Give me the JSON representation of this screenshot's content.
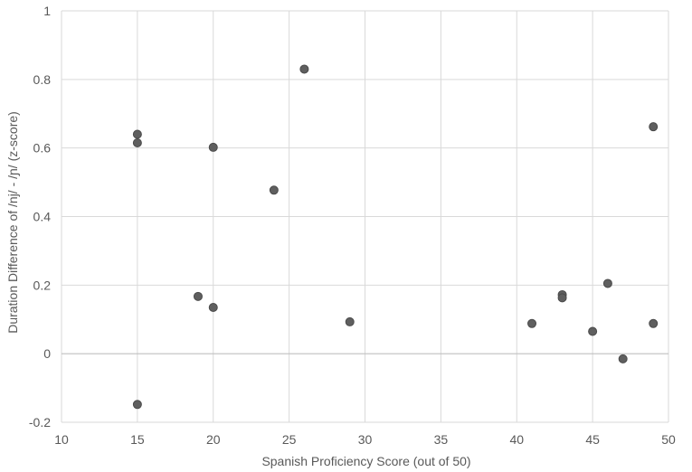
{
  "chart_data": {
    "type": "scatter",
    "title": "",
    "xlabel": "Spanish Proficiency  Score (out  of 50)",
    "ylabel": "Duration Difference of /nj/ - /ɲ/ (z-score)",
    "xlim": [
      10,
      50
    ],
    "ylim": [
      -0.2,
      1
    ],
    "xticks": [
      10,
      15,
      20,
      25,
      30,
      35,
      40,
      45,
      50
    ],
    "yticks": [
      -0.2,
      0,
      0.2,
      0.4,
      0.6,
      0.8,
      1
    ],
    "ytick_labels": [
      "-0.2",
      "0",
      "0.2",
      "0.4",
      "0.6",
      "0.8",
      "1"
    ],
    "grid": true,
    "legend": "none",
    "marker_color": "#5f5f5f",
    "points": [
      {
        "x": 15,
        "y": 0.64
      },
      {
        "x": 15,
        "y": 0.615
      },
      {
        "x": 15,
        "y": -0.148
      },
      {
        "x": 19,
        "y": 0.167
      },
      {
        "x": 20,
        "y": 0.602
      },
      {
        "x": 20,
        "y": 0.135
      },
      {
        "x": 24,
        "y": 0.477
      },
      {
        "x": 26,
        "y": 0.83
      },
      {
        "x": 29,
        "y": 0.093
      },
      {
        "x": 41,
        "y": 0.088
      },
      {
        "x": 43,
        "y": 0.172
      },
      {
        "x": 43,
        "y": 0.163
      },
      {
        "x": 45,
        "y": 0.065
      },
      {
        "x": 46,
        "y": 0.205
      },
      {
        "x": 47,
        "y": -0.015
      },
      {
        "x": 49,
        "y": 0.662
      },
      {
        "x": 49,
        "y": 0.088
      }
    ]
  }
}
